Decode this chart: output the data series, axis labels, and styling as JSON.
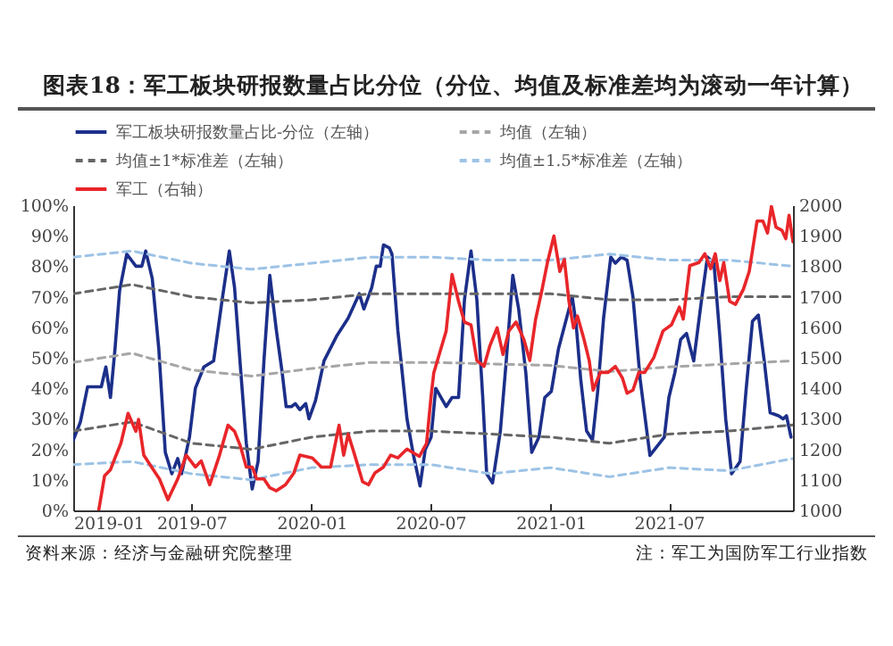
{
  "chart_data": {
    "type": "line",
    "title": "图表18：军工板块研报数量占比分位（分位、均值及标准差均为滚动一年计算）",
    "annotations": [
      "资料来源：经济与金融研究院整理",
      "注：军工为国防军工行业指数"
    ],
    "xlim": [
      "2019-01-01",
      "2022-01-07"
    ],
    "xticks": [
      "2019-01",
      "2019-07",
      "2020-01",
      "2020-07",
      "2021-01",
      "2021-07"
    ],
    "ylim": [
      0,
      100
    ],
    "yticks": [
      {
        "value": 0,
        "label": "0%"
      },
      {
        "value": 10,
        "label": "10%"
      },
      {
        "value": 20,
        "label": "20%"
      },
      {
        "value": 30,
        "label": "30%"
      },
      {
        "value": 40,
        "label": "40%"
      },
      {
        "value": 50,
        "label": "50%"
      },
      {
        "value": 60,
        "label": "60%"
      },
      {
        "value": 70,
        "label": "70%"
      },
      {
        "value": 80,
        "label": "80%"
      },
      {
        "value": 90,
        "label": "90%"
      },
      {
        "value": 100,
        "label": "100%"
      }
    ],
    "y2lim": [
      1000,
      2000
    ],
    "y2ticks": [
      1000,
      1100,
      1200,
      1300,
      1400,
      1500,
      1600,
      1700,
      1800,
      1900,
      2000
    ],
    "legend": "top left",
    "series": [
      {
        "name": "军工板块研报数量占比-分位（左轴）",
        "color": "#1c2f8a",
        "line_style": "solid",
        "x": [
          "2019-01-01",
          "2019-01-12",
          "2019-01-23",
          "2019-02-13",
          "2019-02-20",
          "2019-02-27",
          "2019-03-06",
          "2019-03-13",
          "2019-03-24",
          "2019-04-07",
          "2019-04-16",
          "2019-04-22",
          "2019-05-02",
          "2019-05-12",
          "2019-05-22",
          "2019-06-01",
          "2019-06-10",
          "2019-06-16",
          "2019-06-28",
          "2019-07-07",
          "2019-07-20",
          "2019-08-04",
          "2019-08-17",
          "2019-08-28",
          "2019-09-05",
          "2019-09-14",
          "2019-09-23",
          "2019-10-02",
          "2019-10-11",
          "2019-10-20",
          "2019-10-29",
          "2019-11-08",
          "2019-11-17",
          "2019-11-23",
          "2019-12-01",
          "2019-12-07",
          "2019-12-14",
          "2019-12-23",
          "2019-12-28",
          "2020-01-07",
          "2020-01-20",
          "2020-02-08",
          "2020-02-26",
          "2020-03-14",
          "2020-03-21",
          "2020-04-02",
          "2020-04-09",
          "2020-04-15",
          "2020-04-20",
          "2020-04-29",
          "2020-05-03",
          "2020-05-12",
          "2020-05-26",
          "2020-06-05",
          "2020-06-15",
          "2020-06-23",
          "2020-07-02",
          "2020-07-09",
          "2020-07-25",
          "2020-08-03",
          "2020-08-13",
          "2020-08-22",
          "2020-09-01",
          "2020-09-10",
          "2020-09-19",
          "2020-09-25",
          "2020-10-04",
          "2020-10-16",
          "2020-10-25",
          "2020-11-04",
          "2020-11-13",
          "2020-11-24",
          "2020-12-03",
          "2020-12-14",
          "2020-12-23",
          "2021-01-02",
          "2021-01-13",
          "2021-02-03",
          "2021-02-09",
          "2021-02-16",
          "2021-02-25",
          "2021-03-06",
          "2021-03-14",
          "2021-03-23",
          "2021-04-03",
          "2021-04-10",
          "2021-04-19",
          "2021-04-28",
          "2021-05-07",
          "2021-05-18",
          "2021-06-02",
          "2021-06-13",
          "2021-06-24",
          "2021-07-01",
          "2021-07-10",
          "2021-07-19",
          "2021-07-28",
          "2021-08-08",
          "2021-08-20",
          "2021-08-29",
          "2021-09-08",
          "2021-09-17",
          "2021-09-26",
          "2021-10-05",
          "2021-10-18",
          "2021-10-27",
          "2021-11-06",
          "2021-11-15",
          "2021-11-24",
          "2021-12-03",
          "2021-12-16",
          "2021-12-23",
          "2021-12-28",
          "2022-01-04"
        ],
        "values": [
          23,
          29,
          40.5,
          40.5,
          47,
          37,
          53,
          72,
          84,
          80,
          80,
          85,
          76,
          53,
          19,
          12,
          17,
          12,
          24,
          40,
          47,
          49,
          69,
          85,
          73,
          47,
          22,
          7,
          16,
          49,
          77,
          59,
          45,
          34,
          34,
          35,
          33,
          35,
          30,
          36,
          49,
          57,
          63,
          71,
          66,
          73,
          80,
          80,
          87,
          86,
          84,
          59,
          30,
          18,
          8,
          20,
          24,
          40,
          34,
          37,
          37,
          69,
          85,
          69,
          37,
          12,
          9,
          26,
          49,
          77,
          66,
          45,
          19,
          24,
          37,
          39,
          53,
          70,
          61,
          43,
          26,
          23,
          39,
          63,
          83,
          81,
          83,
          82,
          70,
          43,
          18,
          21,
          24,
          37,
          45,
          56,
          58,
          49,
          69,
          83,
          81,
          57,
          30,
          12,
          16,
          39,
          62,
          64,
          49,
          32,
          31,
          30,
          31,
          24
        ]
      },
      {
        "name": "均值（左轴）",
        "color": "#a6a6a6",
        "line_style": "dashed",
        "x": [
          "2019-01-01",
          "2019-04-01",
          "2019-07-01",
          "2019-10-01",
          "2020-01-01",
          "2020-04-01",
          "2020-07-01",
          "2020-10-01",
          "2021-01-01",
          "2021-04-01",
          "2021-07-01",
          "2021-10-01",
          "2022-01-07"
        ],
        "values": [
          48.5,
          51.5,
          46,
          44,
          46.5,
          48.5,
          48.5,
          48,
          47.5,
          45.5,
          47,
          48,
          49
        ]
      },
      {
        "name": "均值±1*标准差（左轴）",
        "color": "#666666",
        "line_style": "dashed",
        "x": [
          "2019-01-01",
          "2019-04-01",
          "2019-07-01",
          "2019-10-01",
          "2020-01-01",
          "2020-04-01",
          "2020-07-01",
          "2020-10-01",
          "2021-01-01",
          "2021-04-01",
          "2021-07-01",
          "2021-10-01",
          "2022-01-07"
        ],
        "values": [
          71,
          74,
          70,
          68,
          69,
          71,
          71,
          71,
          71,
          69,
          69,
          70,
          70
        ]
      },
      {
        "color": "#666666",
        "line_style": "dashed",
        "x": [
          "2019-01-01",
          "2019-04-01",
          "2019-07-01",
          "2019-10-01",
          "2020-01-01",
          "2020-04-01",
          "2020-07-01",
          "2020-10-01",
          "2021-01-01",
          "2021-04-01",
          "2021-07-01",
          "2021-10-01",
          "2022-01-07"
        ],
        "values": [
          26,
          29,
          22,
          20,
          24,
          26,
          26,
          25,
          24,
          22,
          25,
          26,
          28
        ]
      },
      {
        "name": "均值±1.5*标准差（左轴）",
        "color": "#9dc3e6",
        "line_style": "dashed",
        "x": [
          "2019-01-01",
          "2019-04-01",
          "2019-07-01",
          "2019-10-01",
          "2020-01-01",
          "2020-04-01",
          "2020-07-01",
          "2020-10-01",
          "2021-01-01",
          "2021-04-01",
          "2021-07-01",
          "2021-10-01",
          "2022-01-07"
        ],
        "values": [
          83,
          85,
          81,
          79,
          81,
          83,
          83,
          82,
          82,
          84,
          82,
          82,
          80
        ]
      },
      {
        "color": "#9dc3e6",
        "line_style": "dashed",
        "x": [
          "2019-01-01",
          "2019-04-01",
          "2019-07-01",
          "2019-10-01",
          "2020-01-01",
          "2020-04-01",
          "2020-07-01",
          "2020-10-01",
          "2021-01-01",
          "2021-04-01",
          "2021-07-01",
          "2021-10-01",
          "2022-01-07"
        ],
        "values": [
          15,
          16,
          12,
          10,
          14,
          15,
          15,
          12,
          14,
          11,
          14,
          13,
          17
        ]
      },
      {
        "name": "军工（右轴）",
        "color": "#e8262a",
        "line_style": "solid",
        "axis": "y2",
        "x": [
          "2019-02-09",
          "2019-02-18",
          "2019-02-27",
          "2019-03-06",
          "2019-03-15",
          "2019-03-26",
          "2019-04-07",
          "2019-04-11",
          "2019-04-19",
          "2019-05-01",
          "2019-05-13",
          "2019-05-26",
          "2019-06-10",
          "2019-06-23",
          "2019-07-07",
          "2019-07-16",
          "2019-07-29",
          "2019-08-13",
          "2019-08-26",
          "2019-09-05",
          "2019-09-14",
          "2019-09-23",
          "2019-10-02",
          "2019-10-09",
          "2019-10-20",
          "2019-10-29",
          "2019-11-08",
          "2019-11-22",
          "2019-12-05",
          "2019-12-14",
          "2020-01-02",
          "2020-01-16",
          "2020-01-30",
          "2020-02-12",
          "2020-02-19",
          "2020-02-26",
          "2020-03-07",
          "2020-03-19",
          "2020-03-28",
          "2020-04-07",
          "2020-04-20",
          "2020-05-01",
          "2020-05-12",
          "2020-05-26",
          "2020-06-14",
          "2020-06-25",
          "2020-07-02",
          "2020-07-06",
          "2020-07-25",
          "2020-08-03",
          "2020-08-13",
          "2020-08-22",
          "2020-09-01",
          "2020-09-10",
          "2020-09-21",
          "2020-09-30",
          "2020-10-11",
          "2020-10-20",
          "2020-10-29",
          "2020-11-09",
          "2020-11-21",
          "2020-11-30",
          "2020-12-09",
          "2020-12-18",
          "2020-12-27",
          "2021-01-06",
          "2021-01-15",
          "2021-01-22",
          "2021-01-29",
          "2021-02-05",
          "2021-02-11",
          "2021-02-20",
          "2021-03-01",
          "2021-03-07",
          "2021-03-18",
          "2021-03-30",
          "2021-04-10",
          "2021-04-21",
          "2021-04-28",
          "2021-05-07",
          "2021-05-16",
          "2021-05-25",
          "2021-06-08",
          "2021-06-22",
          "2021-07-05",
          "2021-07-17",
          "2021-07-23",
          "2021-08-02",
          "2021-08-16",
          "2021-08-25",
          "2021-09-03",
          "2021-09-10",
          "2021-09-17",
          "2021-09-23",
          "2021-10-02",
          "2021-10-11",
          "2021-10-23",
          "2021-11-01",
          "2021-11-13",
          "2021-11-22",
          "2021-11-29",
          "2021-12-05",
          "2021-12-12",
          "2021-12-21",
          "2021-12-27",
          "2022-01-01",
          "2022-01-07"
        ],
        "values": [
          1000,
          1113,
          1133,
          1172,
          1220,
          1318,
          1259,
          1298,
          1181,
          1142,
          1103,
          1035,
          1103,
          1181,
          1142,
          1162,
          1084,
          1181,
          1279,
          1259,
          1210,
          1142,
          1142,
          1103,
          1103,
          1074,
          1064,
          1084,
          1123,
          1181,
          1172,
          1142,
          1142,
          1279,
          1181,
          1250,
          1181,
          1094,
          1084,
          1123,
          1142,
          1181,
          1172,
          1201,
          1177,
          1220,
          1376,
          1450,
          1588,
          1773,
          1685,
          1617,
          1608,
          1491,
          1472,
          1540,
          1598,
          1511,
          1588,
          1617,
          1560,
          1491,
          1627,
          1715,
          1812,
          1899,
          1783,
          1822,
          1685,
          1598,
          1637,
          1569,
          1491,
          1394,
          1452,
          1452,
          1472,
          1433,
          1384,
          1394,
          1452,
          1452,
          1501,
          1588,
          1608,
          1666,
          1627,
          1802,
          1812,
          1841,
          1792,
          1841,
          1753,
          1812,
          1685,
          1675,
          1724,
          1783,
          1948,
          1948,
          1909,
          1996,
          1928,
          1918,
          1890,
          1967,
          1880
        ]
      }
    ]
  }
}
